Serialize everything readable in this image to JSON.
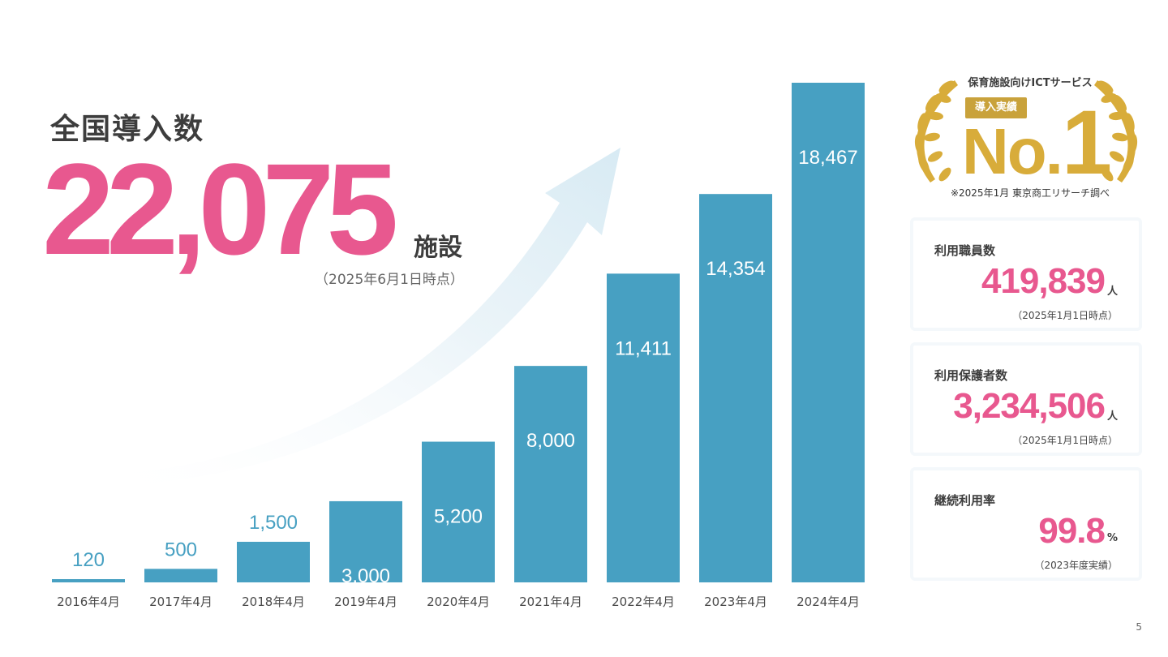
{
  "hero": {
    "title": "全国導入数",
    "value": "22,075",
    "unit": "施設",
    "note": "（2025年6月1日時点）"
  },
  "chart_data": {
    "type": "bar",
    "categories": [
      "2016年4月",
      "2017年4月",
      "2018年4月",
      "2019年4月",
      "2020年4月",
      "2021年4月",
      "2022年4月",
      "2023年4月",
      "2024年4月"
    ],
    "values": [
      120,
      500,
      1500,
      3000,
      5200,
      8000,
      11411,
      14354,
      18467
    ],
    "value_labels": [
      "120",
      "500",
      "1,500",
      "3,000",
      "5,200",
      "8,000",
      "11,411",
      "14,354",
      "18,467"
    ],
    "bar_color": "#47a0c2",
    "ylim": [
      0,
      18467
    ],
    "grid": false
  },
  "badge": {
    "subtitle": "保育施設向けICTサービス",
    "tag": "導入実績",
    "rank_prefix": "No.",
    "rank_number": "1",
    "note": "※2025年1月 東京商工リサーチ調べ",
    "color": "#d8ac3a"
  },
  "stats": [
    {
      "label": "利用職員数",
      "value": "419,839",
      "unit": "人",
      "note": "（2025年1月1日時点）"
    },
    {
      "label": "利用保護者数",
      "value": "3,234,506",
      "unit": "人",
      "note": "（2025年1月1日時点）"
    },
    {
      "label": "継続利用率",
      "value": "99.8",
      "unit": "%",
      "note": "（2023年度実績）"
    }
  ],
  "accent_color": "#e8588f",
  "page_number": "5"
}
